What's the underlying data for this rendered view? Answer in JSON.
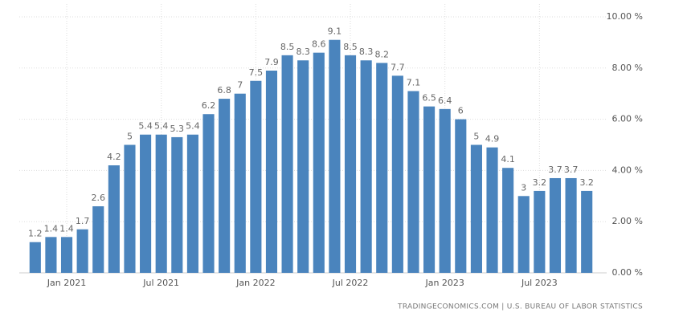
{
  "chart_data": {
    "type": "bar",
    "categories": [
      null,
      null,
      "Jan 2021",
      null,
      null,
      null,
      null,
      null,
      "Jul 2021",
      null,
      null,
      null,
      null,
      null,
      "Jan 2022",
      null,
      null,
      null,
      null,
      null,
      "Jul 2022",
      null,
      null,
      null,
      null,
      null,
      "Jan 2023",
      null,
      null,
      null,
      null,
      null,
      "Jul 2023",
      null,
      null,
      null
    ],
    "values": [
      1.2,
      1.4,
      1.4,
      1.7,
      2.6,
      4.2,
      5,
      5.4,
      5.4,
      5.3,
      5.4,
      6.2,
      6.8,
      7,
      7.5,
      7.9,
      8.5,
      8.3,
      8.6,
      9.1,
      8.5,
      8.3,
      8.2,
      7.7,
      7.1,
      6.5,
      6.4,
      6,
      5,
      4.9,
      4.1,
      3,
      3.2,
      3.7,
      3.7,
      3.2
    ],
    "color": "#4a84bd",
    "ylim": [
      0,
      10
    ],
    "yticks": [
      {
        "value": 0,
        "label": "0.00 %"
      },
      {
        "value": 2,
        "label": "2.00 %"
      },
      {
        "value": 4,
        "label": "4.00 %"
      },
      {
        "value": 6,
        "label": "6.00 %"
      },
      {
        "value": 8,
        "label": "8.00 %"
      },
      {
        "value": 10,
        "label": "10.00 %"
      }
    ],
    "grid": true,
    "source": "TRADINGECONOMICS.COM | U.S. BUREAU OF LABOR STATISTICS"
  }
}
